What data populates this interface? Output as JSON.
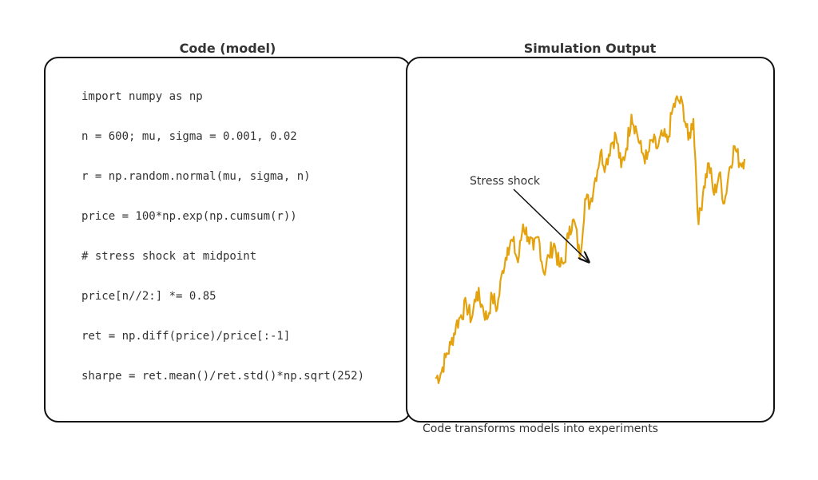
{
  "titles": {
    "code": "Code (model)",
    "output": "Simulation Output"
  },
  "code_lines": [
    "import numpy as np",
    "n = 600; mu, sigma = 0.001, 0.02",
    "r = np.random.normal(mu, sigma, n)",
    "price = 100*np.exp(np.cumsum(r))",
    "# stress shock at midpoint",
    "price[n//2:] *= 0.85",
    "ret = np.diff(price)/price[:-1]",
    "sharpe = ret.mean()/ret.std()*np.sqrt(252)"
  ],
  "annotation": {
    "text": "Stress shock"
  },
  "caption": "Code transforms models into experiments",
  "colors": {
    "series": "#e3a20e",
    "border": "#111111",
    "text": "#333333"
  },
  "chart_data": {
    "type": "line",
    "series_color": "#e3a20e",
    "points_x": [
      0,
      10,
      20,
      30,
      40,
      50,
      60,
      70,
      80,
      90,
      100,
      110,
      120,
      130,
      140,
      150,
      160,
      170,
      180,
      190,
      200,
      210,
      220,
      230,
      240,
      250,
      260,
      270,
      280,
      290,
      300,
      310,
      320,
      330,
      340,
      350,
      360,
      370,
      380,
      390,
      400,
      410,
      420,
      430,
      440,
      450,
      460,
      470,
      480,
      490,
      500,
      510,
      520,
      530,
      540,
      550,
      560,
      570,
      580,
      590,
      599
    ],
    "points_y": [
      0.05,
      0.07,
      0.15,
      0.21,
      0.3,
      0.35,
      0.4,
      0.33,
      0.46,
      0.4,
      0.33,
      0.44,
      0.38,
      0.56,
      0.67,
      0.7,
      0.6,
      0.78,
      0.72,
      0.66,
      0.72,
      0.55,
      0.63,
      0.69,
      0.58,
      0.6,
      0.77,
      0.79,
      0.62,
      0.9,
      0.88,
      1.0,
      1.12,
      1.06,
      1.16,
      1.2,
      1.05,
      1.14,
      1.3,
      1.22,
      1.12,
      1.09,
      1.18,
      1.14,
      1.2,
      1.17,
      1.33,
      1.37,
      1.34,
      1.18,
      1.28,
      0.78,
      0.96,
      1.07,
      0.92,
      1.02,
      0.88,
      1.05,
      1.15,
      1.07,
      1.09
    ],
    "annotation_point": {
      "x": 270,
      "text": "Stress shock"
    },
    "axes_visible": false,
    "grid": false
  }
}
